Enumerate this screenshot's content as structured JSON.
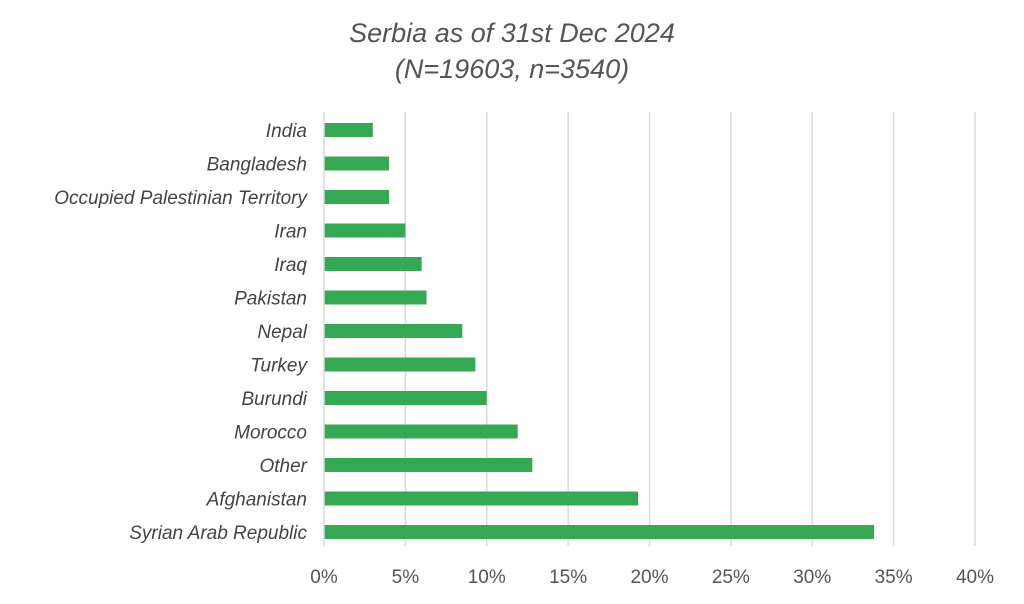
{
  "chart_data": {
    "type": "bar",
    "orientation": "horizontal",
    "title": "Serbia as of 31st Dec 2024",
    "subtitle": "(N=19603, n=3540)",
    "categories": [
      "India",
      "Bangladesh",
      "Occupied Palestinian Territory",
      "Iran",
      "Iraq",
      "Pakistan",
      "Nepal",
      "Turkey",
      "Burundi",
      "Morocco",
      "Other",
      "Afghanistan",
      "Syrian Arab Republic"
    ],
    "values": [
      0.03,
      0.04,
      0.04,
      0.05,
      0.06,
      0.063,
      0.085,
      0.093,
      0.1,
      0.119,
      0.128,
      0.193,
      0.338
    ],
    "xlim": [
      0,
      0.4
    ],
    "xticks": [
      0,
      0.05,
      0.1,
      0.15,
      0.2,
      0.25,
      0.3,
      0.35,
      0.4
    ],
    "xtick_labels": [
      "0%",
      "5%",
      "10%",
      "15%",
      "20%",
      "25%",
      "30%",
      "35%",
      "40%"
    ],
    "grid": "vertical",
    "legend": "none",
    "bar_color": "#34a853",
    "grid_color": "#d9d9d9"
  }
}
